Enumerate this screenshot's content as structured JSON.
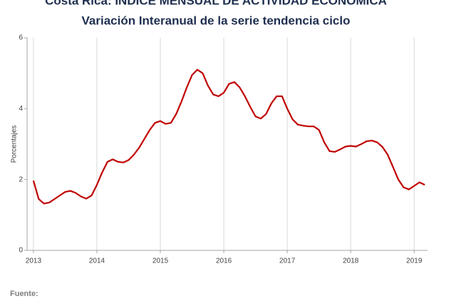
{
  "chart_data": {
    "type": "line",
    "title": "Costa Rica: ÍNDICE MENSUAL DE ACTIVIDAD ECONÓMICA",
    "subtitle": "Variación Interanual de la serie tendencia ciclo",
    "y_label": "Porcentajes",
    "source": "Fuente:",
    "x": [
      2013.0,
      2013.083,
      2013.167,
      2013.25,
      2013.333,
      2013.417,
      2013.5,
      2013.583,
      2013.667,
      2013.75,
      2013.833,
      2013.917,
      2014.0,
      2014.083,
      2014.167,
      2014.25,
      2014.333,
      2014.417,
      2014.5,
      2014.583,
      2014.667,
      2014.75,
      2014.833,
      2014.917,
      2015.0,
      2015.083,
      2015.167,
      2015.25,
      2015.333,
      2015.417,
      2015.5,
      2015.583,
      2015.667,
      2015.75,
      2015.833,
      2015.917,
      2016.0,
      2016.083,
      2016.167,
      2016.25,
      2016.333,
      2016.417,
      2016.5,
      2016.583,
      2016.667,
      2016.75,
      2016.833,
      2016.917,
      2017.0,
      2017.083,
      2017.167,
      2017.25,
      2017.333,
      2017.417,
      2017.5,
      2017.583,
      2017.667,
      2017.75,
      2017.833,
      2017.917,
      2018.0,
      2018.083,
      2018.167,
      2018.25,
      2018.333,
      2018.417,
      2018.5,
      2018.583,
      2018.667,
      2018.75,
      2018.833,
      2018.917,
      2019.0,
      2019.083,
      2019.167
    ],
    "series": [
      {
        "name": "Variación interanual",
        "color": "#c00000",
        "values": [
          1.97,
          1.45,
          1.32,
          1.35,
          1.45,
          1.55,
          1.65,
          1.68,
          1.62,
          1.52,
          1.46,
          1.55,
          1.85,
          2.2,
          2.5,
          2.57,
          2.5,
          2.48,
          2.55,
          2.7,
          2.9,
          3.15,
          3.4,
          3.6,
          3.65,
          3.57,
          3.6,
          3.85,
          4.2,
          4.6,
          4.95,
          5.1,
          5.0,
          4.65,
          4.4,
          4.35,
          4.45,
          4.7,
          4.75,
          4.6,
          4.35,
          4.05,
          3.78,
          3.72,
          3.85,
          4.15,
          4.35,
          4.35,
          4.0,
          3.7,
          3.55,
          3.52,
          3.5,
          3.5,
          3.4,
          3.05,
          2.8,
          2.78,
          2.85,
          2.93,
          2.95,
          2.93,
          3.0,
          3.08,
          3.1,
          3.05,
          2.92,
          2.7,
          2.35,
          2.0,
          1.78,
          1.72,
          1.82,
          1.92,
          1.85
        ]
      }
    ],
    "xlim": [
      2012.9,
      2019.21
    ],
    "xticks": [
      2013,
      2014,
      2015,
      2016,
      2017,
      2018,
      2019
    ],
    "ylim": [
      0,
      6
    ],
    "yticks": [
      0,
      2,
      4,
      6
    ],
    "grid": "x"
  }
}
